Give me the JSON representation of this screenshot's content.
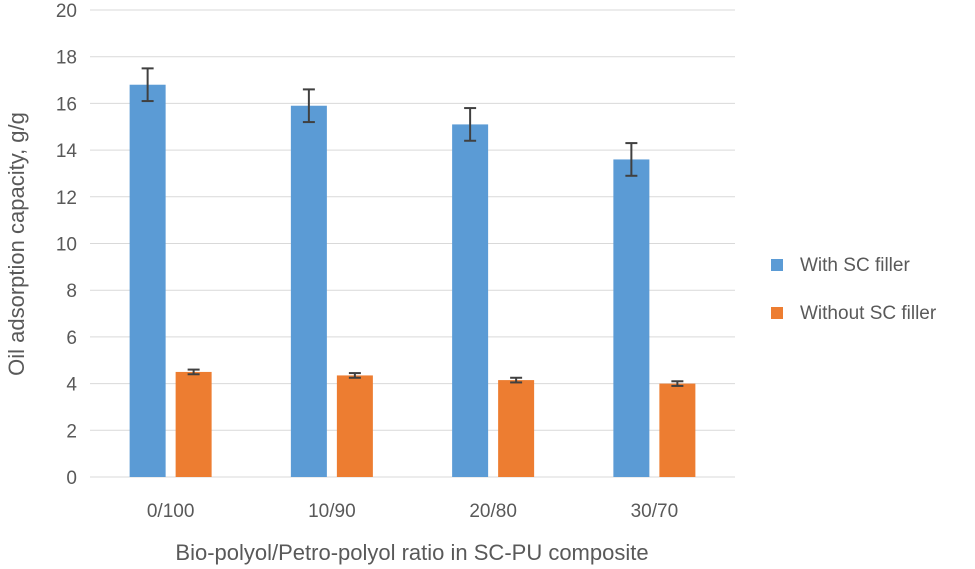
{
  "chart_data": {
    "type": "bar",
    "categories": [
      "0/100",
      "10/90",
      "20/80",
      "30/70"
    ],
    "series": [
      {
        "name": "With SC filler",
        "values": [
          16.8,
          15.9,
          15.1,
          13.6
        ],
        "errors": [
          0.7,
          0.7,
          0.7,
          0.7
        ],
        "color": "#5b9bd5"
      },
      {
        "name": "Without SC filler",
        "values": [
          4.5,
          4.35,
          4.15,
          4.0
        ],
        "errors": [
          0.1,
          0.1,
          0.1,
          0.1
        ],
        "color": "#ed7d31"
      }
    ],
    "title": "",
    "xlabel": "Bio-polyol/Petro-polyol ratio in SC-PU composite",
    "ylabel": "Oil adsorption capacity, g/g",
    "ylim": [
      0,
      20
    ],
    "yticks": [
      0,
      2,
      4,
      6,
      8,
      10,
      12,
      14,
      16,
      18,
      20
    ],
    "grid": true,
    "legend_position": "right",
    "gridline_color": "#d9d9d9",
    "errorbar_color": "#404040"
  }
}
